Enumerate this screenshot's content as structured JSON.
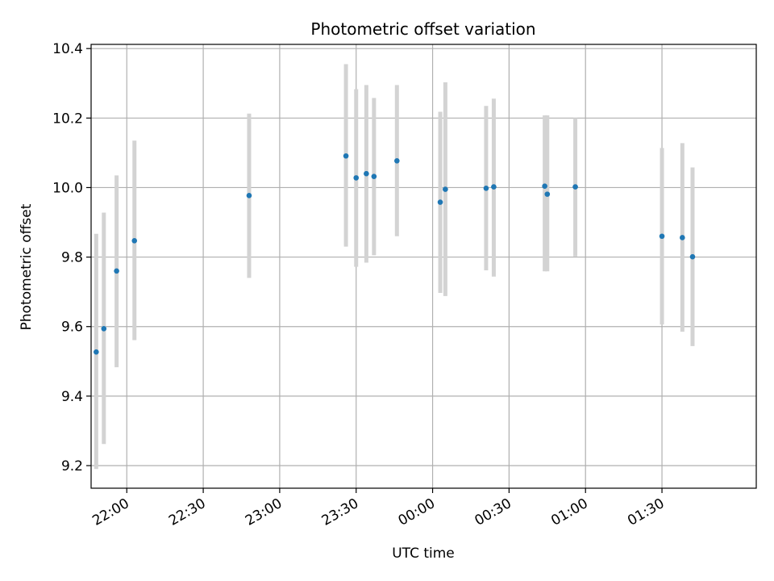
{
  "chart_data": {
    "type": "scatter",
    "title": "Photometric offset variation",
    "xlabel": "UTC time",
    "ylabel": "Photometric offset",
    "x_ticks": [
      "22:00",
      "22:30",
      "23:00",
      "23:30",
      "00:00",
      "00:30",
      "01:00",
      "01:30"
    ],
    "y_ticks": [
      "9.2",
      "9.4",
      "9.6",
      "9.8",
      "10.0",
      "10.2",
      "10.4"
    ],
    "xlim": [
      "21:46",
      "02:07"
    ],
    "ylim": [
      9.135,
      10.412
    ],
    "grid": true,
    "colors": {
      "marker": "#1f77b4",
      "errorbar": "#d3d3d3",
      "grid": "#b0b0b0"
    },
    "series": [
      {
        "x": [
          "21:48",
          "21:51",
          "21:56",
          "22:03",
          "22:48",
          "23:26",
          "23:30",
          "23:34",
          "23:37",
          "23:46",
          "00:03",
          "00:05",
          "00:21",
          "00:24",
          "00:44",
          "00:45",
          "00:56",
          "01:30",
          "01:38",
          "01:42"
        ],
        "y": [
          9.527,
          9.594,
          9.76,
          9.847,
          9.977,
          10.091,
          10.028,
          10.04,
          10.032,
          10.077,
          9.958,
          9.995,
          9.998,
          10.002,
          10.004,
          9.981,
          10.002,
          9.86,
          9.856,
          9.801
        ],
        "yerr_low": [
          9.19,
          9.262,
          9.483,
          9.561,
          9.74,
          9.83,
          9.772,
          9.784,
          9.805,
          9.86,
          9.697,
          9.688,
          9.762,
          9.744,
          9.759,
          9.759,
          9.802,
          9.606,
          9.585,
          9.544
        ],
        "yerr_high": [
          9.867,
          9.928,
          10.035,
          10.135,
          10.213,
          10.355,
          10.283,
          10.295,
          10.258,
          10.295,
          10.218,
          10.303,
          10.235,
          10.256,
          10.208,
          10.208,
          10.2,
          10.114,
          10.128,
          10.058
        ]
      }
    ]
  }
}
